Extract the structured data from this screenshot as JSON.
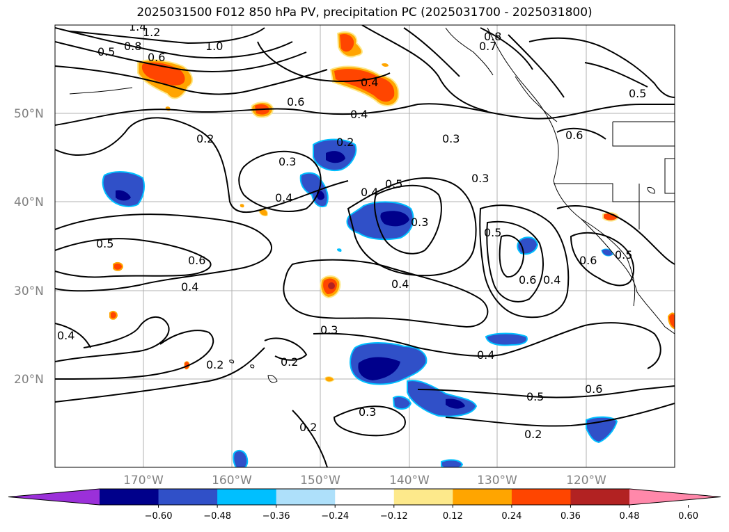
{
  "title": "2025031500 F012 850 hPa PV, precipitation PC (2025031700 - 2025031800)",
  "lat_labels": [
    "50°N",
    "40°N",
    "30°N",
    "20°N"
  ],
  "lon_labels": [
    "170°W",
    "160°W",
    "150°W",
    "140°W",
    "130°W",
    "120°W"
  ],
  "colorbar": {
    "colors": [
      "#9b30d9",
      "#00008b",
      "#3050c8",
      "#00bfff",
      "#aee0fa",
      "#ffffff",
      "#fde98b",
      "#ffa500",
      "#ff4500",
      "#b22222",
      "#ff88aa"
    ],
    "ticks": [
      "−0.60",
      "−0.48",
      "−0.36",
      "−0.24",
      "−0.12",
      "0.12",
      "0.24",
      "0.36",
      "0.48",
      "0.60"
    ]
  },
  "contour_labels": [
    "1.4",
    "1.2",
    "1.0",
    "0.5",
    "0.8",
    "0.6",
    "0.4",
    "0.6",
    "0.8",
    "0.7",
    "0.5",
    "0.4",
    "0.6",
    "0.2",
    "0.3",
    "0.2",
    "0.3",
    "0.4",
    "0.3",
    "0.4",
    "0.5",
    "0.3",
    "0.6",
    "0.5",
    "0.6",
    "0.4",
    "0.5",
    "0.4",
    "0.5",
    "0.6",
    "0.4",
    "0.2",
    "0.3",
    "0.4",
    "0.4",
    "0.2",
    "0.6",
    "0.5",
    "0.3",
    "0.2",
    "0.2"
  ],
  "chart_data": {
    "type": "map",
    "title": "2025031500 F012 850 hPa PV, precipitation PC (2025031700 - 2025031800)",
    "lat_range": [
      "~10°N",
      "~60°N"
    ],
    "lon_range": [
      "~180°W",
      "~110°W"
    ]
  }
}
